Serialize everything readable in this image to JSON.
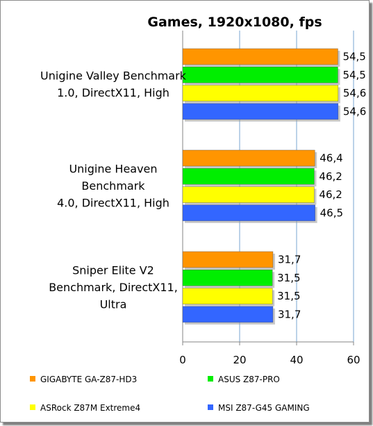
{
  "chart_data": {
    "type": "bar",
    "orientation": "horizontal",
    "title": "Games, 1920x1080, fps",
    "xlabel": "",
    "ylabel": "",
    "xlim": [
      0,
      60
    ],
    "xticks": [
      "0",
      "20",
      "40",
      "60"
    ],
    "grid": "vertical",
    "legend_position": "bottom",
    "categories": [
      [
        "Unigine Valley Benchmark",
        "1.0, DirectX11, High"
      ],
      [
        "Unigine Heaven",
        "Benchmark",
        "4.0, DirectX11, High"
      ],
      [
        "Sniper Elite V2",
        "Benchmark, DirectX11,",
        "Ultra"
      ]
    ],
    "series": [
      {
        "name": "GIGABYTE GA-Z87-HD3",
        "color": "#ff9500",
        "values": [
          54.5,
          46.4,
          31.7
        ],
        "labels": [
          "54,5",
          "46,4",
          "31,7"
        ]
      },
      {
        "name": "ASUS Z87-PRO",
        "color": "#00ee00",
        "values": [
          54.5,
          46.2,
          31.5
        ],
        "labels": [
          "54,5",
          "46,2",
          "31,5"
        ]
      },
      {
        "name": "ASRock Z87M Extreme4",
        "color": "#ffff00",
        "values": [
          54.6,
          46.2,
          31.5
        ],
        "labels": [
          "54,6",
          "46,2",
          "31,5"
        ]
      },
      {
        "name": "MSI Z87-G45 GAMING",
        "color": "#3366ff",
        "values": [
          54.6,
          46.5,
          31.7
        ],
        "labels": [
          "54,6",
          "46,5",
          "31,7"
        ]
      }
    ]
  }
}
